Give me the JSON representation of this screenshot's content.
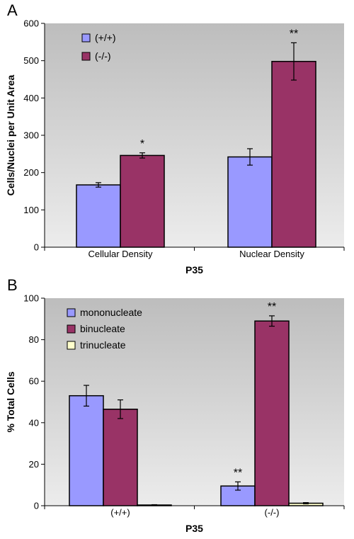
{
  "chart_data": [
    {
      "panel": "A",
      "type": "bar",
      "categories": [
        "Cellular Density",
        "Nuclear Density"
      ],
      "series": [
        {
          "name": "(+/+)",
          "color": "#9999ff",
          "values": [
            167,
            242
          ],
          "errors": [
            6,
            22
          ],
          "sig": [
            "",
            ""
          ]
        },
        {
          "name": "(-/-)",
          "color": "#993366",
          "values": [
            246,
            498
          ],
          "errors": [
            7,
            50
          ],
          "sig": [
            "*",
            "**"
          ]
        }
      ],
      "ylabel": "Cells/Nuclei per Unit Area",
      "xlabel": "P35",
      "ylim": [
        0,
        600
      ],
      "yticks": [
        0,
        100,
        200,
        300,
        400,
        500,
        600
      ],
      "legend_position": "top-left",
      "grid": false
    },
    {
      "panel": "B",
      "type": "bar",
      "categories": [
        "(+/+)",
        "(-/-)"
      ],
      "series": [
        {
          "name": "mononucleate",
          "color": "#9999ff",
          "values": [
            53,
            9.5
          ],
          "errors": [
            5,
            2
          ],
          "sig": [
            "",
            "**"
          ]
        },
        {
          "name": "binucleate",
          "color": "#993366",
          "values": [
            46.5,
            89
          ],
          "errors": [
            4.5,
            2.5
          ],
          "sig": [
            "",
            "**"
          ]
        },
        {
          "name": "trinucleate",
          "color": "#ffffcc",
          "values": [
            0.3,
            1.2
          ],
          "errors": [
            0.2,
            0.3
          ],
          "sig": [
            "",
            ""
          ]
        }
      ],
      "ylabel": "% Total Cells",
      "xlabel": "P35",
      "ylim": [
        0,
        100
      ],
      "yticks": [
        0,
        20,
        40,
        60,
        80,
        100
      ],
      "legend_position": "top-left",
      "grid": false
    }
  ]
}
